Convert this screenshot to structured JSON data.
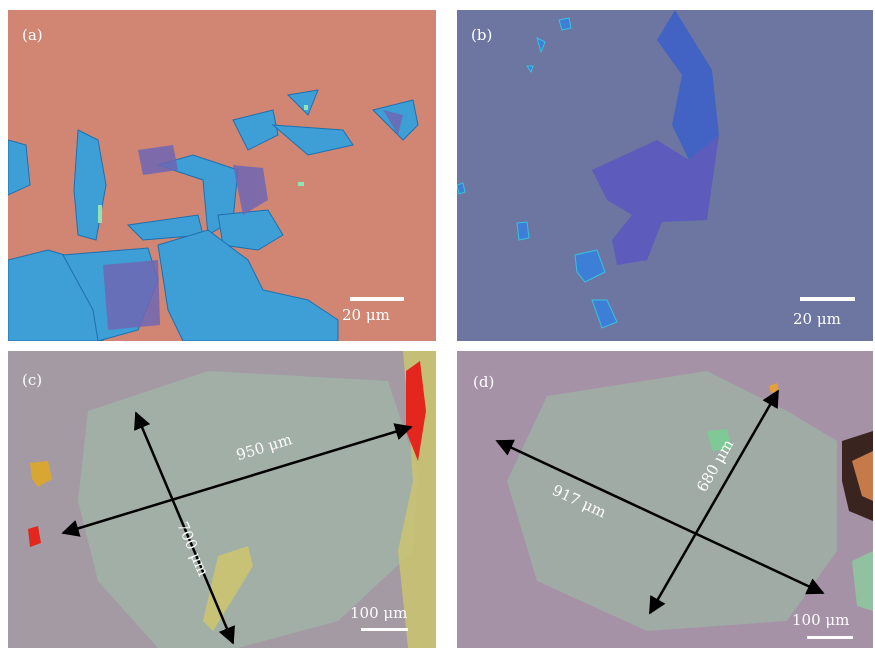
{
  "panels": [
    {
      "id": "a",
      "label": "(a)",
      "scale_text": "20 μm",
      "background": "#d08672"
    },
    {
      "id": "b",
      "label": "(b)",
      "scale_text": "20 μm",
      "background": "#6d76a0"
    },
    {
      "id": "c",
      "label": "(c)",
      "scale_text": "100 μm",
      "background": "#a39aa4",
      "measurements": [
        "950 μm",
        "700 μm"
      ]
    },
    {
      "id": "d",
      "label": "(d)",
      "scale_text": "100 μm",
      "background": "#a592a6",
      "measurements": [
        "917 μm",
        "680 μm"
      ]
    }
  ]
}
